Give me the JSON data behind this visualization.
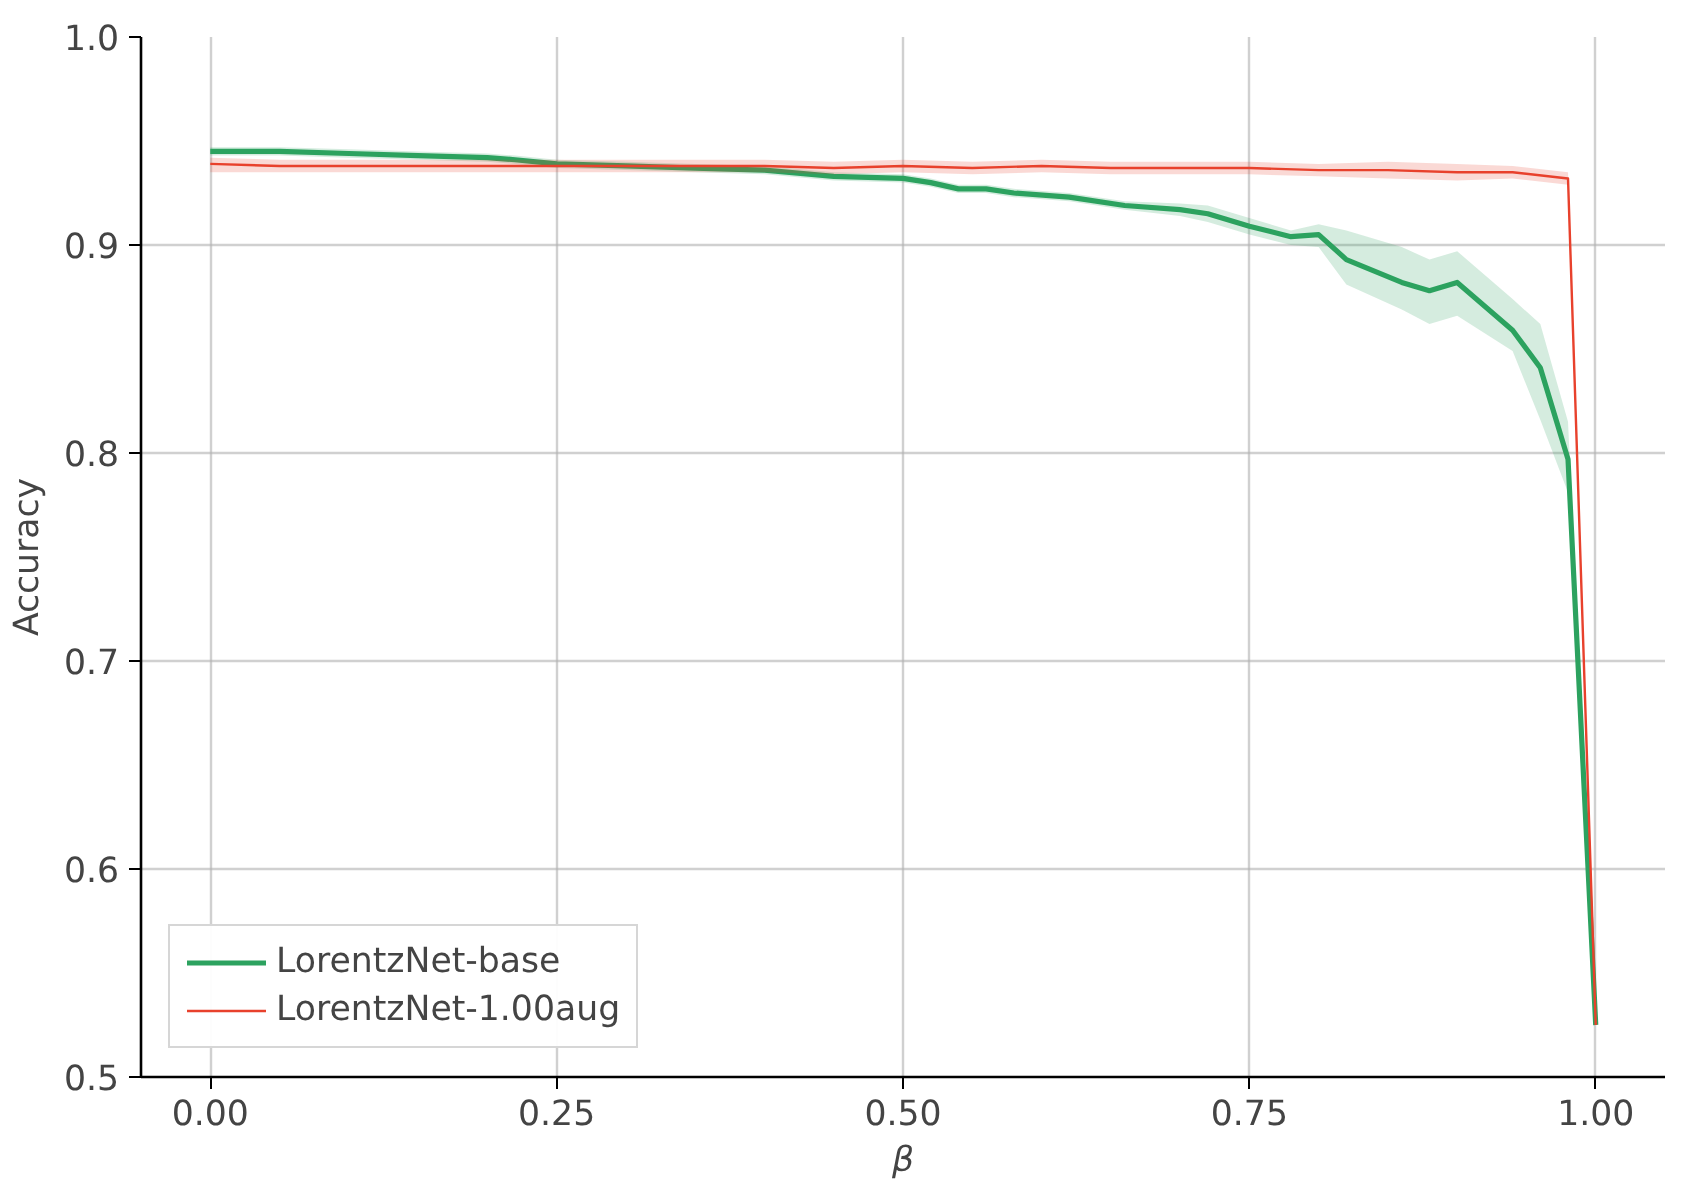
{
  "chart_data": {
    "type": "line",
    "xlabel": "β",
    "ylabel": "Accuracy",
    "xlim": [
      -0.05,
      1.05
    ],
    "ylim": [
      0.5,
      1.0
    ],
    "xticks": [
      {
        "value": 0,
        "label": "0.00"
      },
      {
        "value": 0.25,
        "label": "0.25"
      },
      {
        "value": 0.5,
        "label": "0.50"
      },
      {
        "value": 0.75,
        "label": "0.75"
      },
      {
        "value": 1,
        "label": "1.00"
      }
    ],
    "yticks": [
      0.5,
      0.6,
      0.7,
      0.8,
      0.9,
      {
        "value": 1.0,
        "label": "1.0"
      }
    ],
    "grid": true,
    "legend": "bottom left",
    "series": [
      {
        "name": "LorentzNet-base",
        "color": "#2ca25f",
        "x": [
          0,
          0.05,
          0.1,
          0.15,
          0.2,
          0.22,
          0.25,
          0.3,
          0.35,
          0.4,
          0.45,
          0.5,
          0.52,
          0.54,
          0.56,
          0.58,
          0.62,
          0.66,
          0.7,
          0.72,
          0.75,
          0.78,
          0.8,
          0.82,
          0.86,
          0.88,
          0.9,
          0.94,
          0.96,
          0.98,
          1.0
        ],
        "values": [
          0.945,
          0.945,
          0.944,
          0.943,
          0.942,
          0.941,
          0.939,
          0.938,
          0.937,
          0.936,
          0.933,
          0.932,
          0.93,
          0.927,
          0.927,
          0.925,
          0.923,
          0.919,
          0.917,
          0.915,
          0.909,
          0.904,
          0.905,
          0.893,
          0.882,
          0.878,
          0.882,
          0.859,
          0.841,
          0.797,
          0.525
        ],
        "lower": [
          0.943,
          0.943,
          0.942,
          0.941,
          0.94,
          0.939,
          0.937,
          0.936,
          0.935,
          0.934,
          0.931,
          0.93,
          0.928,
          0.925,
          0.925,
          0.923,
          0.921,
          0.917,
          0.914,
          0.911,
          0.905,
          0.9,
          0.899,
          0.881,
          0.869,
          0.862,
          0.866,
          0.849,
          0.816,
          0.781,
          0.525
        ],
        "upper": [
          0.947,
          0.947,
          0.946,
          0.945,
          0.944,
          0.943,
          0.941,
          0.94,
          0.939,
          0.938,
          0.935,
          0.934,
          0.932,
          0.929,
          0.929,
          0.927,
          0.925,
          0.921,
          0.92,
          0.919,
          0.913,
          0.907,
          0.91,
          0.907,
          0.899,
          0.893,
          0.897,
          0.874,
          0.862,
          0.815,
          0.525
        ]
      },
      {
        "name": "LorentzNet-1.00aug",
        "color": "#e8412c",
        "x": [
          0,
          0.05,
          0.1,
          0.15,
          0.2,
          0.25,
          0.3,
          0.35,
          0.4,
          0.45,
          0.5,
          0.55,
          0.6,
          0.65,
          0.7,
          0.75,
          0.8,
          0.85,
          0.9,
          0.94,
          0.98,
          1.0
        ],
        "values": [
          0.939,
          0.938,
          0.938,
          0.938,
          0.938,
          0.938,
          0.938,
          0.938,
          0.938,
          0.937,
          0.938,
          0.937,
          0.938,
          0.937,
          0.937,
          0.937,
          0.936,
          0.936,
          0.935,
          0.935,
          0.932,
          0.525
        ],
        "lower": [
          0.935,
          0.935,
          0.935,
          0.935,
          0.935,
          0.935,
          0.935,
          0.935,
          0.935,
          0.934,
          0.935,
          0.934,
          0.935,
          0.934,
          0.934,
          0.934,
          0.933,
          0.932,
          0.931,
          0.932,
          0.929,
          0.525
        ],
        "upper": [
          0.942,
          0.941,
          0.941,
          0.941,
          0.941,
          0.941,
          0.941,
          0.941,
          0.941,
          0.94,
          0.941,
          0.94,
          0.941,
          0.94,
          0.94,
          0.94,
          0.939,
          0.94,
          0.939,
          0.938,
          0.935,
          0.525
        ]
      }
    ]
  }
}
